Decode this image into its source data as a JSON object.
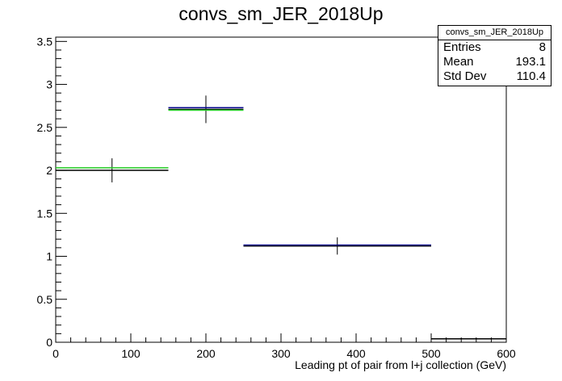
{
  "chart_data": {
    "type": "histogram",
    "title": "convs_sm_JER_2018Up",
    "xlabel": "Leading pt of pair from l+j collection (GeV)",
    "ylabel": "",
    "xlim": [
      0,
      600
    ],
    "ylim": [
      0,
      3.55
    ],
    "x_ticks": [
      0,
      100,
      200,
      300,
      400,
      500,
      600
    ],
    "y_ticks": [
      0,
      0.5,
      1,
      1.5,
      2,
      2.5,
      3,
      3.5
    ],
    "x_tick_labels": [
      "0",
      "100",
      "200",
      "300",
      "400",
      "500",
      "600"
    ],
    "y_tick_labels": [
      "0",
      "0.5",
      "1",
      "1.5",
      "2",
      "2.5",
      "3",
      "3.5"
    ],
    "grid": false,
    "series": [
      {
        "color": "#000000",
        "bins": [
          {
            "x0": 0,
            "x1": 150,
            "y": 2.0,
            "err": 0.14
          },
          {
            "x0": 150,
            "x1": 250,
            "y": 2.71,
            "err": 0.16
          },
          {
            "x0": 250,
            "x1": 500,
            "y": 1.12,
            "err": 0.1
          },
          {
            "x0": 500,
            "x1": 600,
            "y": 0.04,
            "err": 0.0
          }
        ]
      },
      {
        "color": "#00008b",
        "bins": [
          {
            "x0": 150,
            "x1": 250,
            "y": 2.73
          },
          {
            "x0": 250,
            "x1": 500,
            "y": 1.13
          }
        ]
      },
      {
        "color": "#22cc22",
        "bins": [
          {
            "x0": 0,
            "x1": 150,
            "y": 2.03
          },
          {
            "x0": 150,
            "x1": 250,
            "y": 2.7
          }
        ]
      }
    ],
    "stats_box": {
      "name": "convs_sm_JER_2018Up",
      "rows": [
        {
          "label": "Entries",
          "value": "8"
        },
        {
          "label": "Mean",
          "value": "193.1"
        },
        {
          "label": "Std Dev",
          "value": "110.4"
        }
      ]
    }
  }
}
